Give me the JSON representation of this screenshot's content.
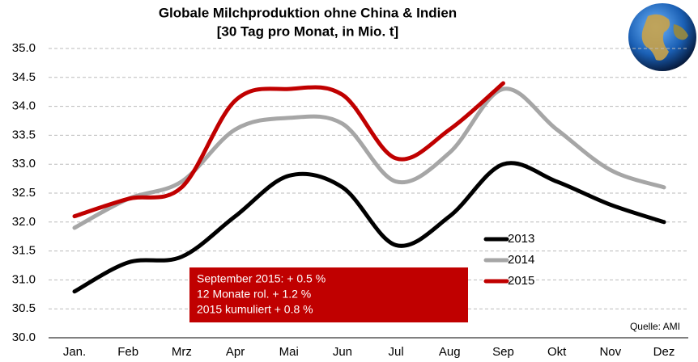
{
  "chart_data": {
    "type": "line",
    "title": "Globale Milchproduktion ohne China & Indien",
    "subtitle": "[30 Tag pro Monat, in Mio. t]",
    "categories": [
      "Jan.",
      "Feb",
      "Mrz",
      "Apr",
      "Mai",
      "Jun",
      "Jul",
      "Aug",
      "Sep",
      "Okt",
      "Nov",
      "Dez"
    ],
    "series": [
      {
        "name": "2013",
        "color": "#000000",
        "values": [
          30.8,
          31.3,
          31.4,
          32.1,
          32.8,
          32.6,
          31.6,
          32.1,
          33.0,
          32.7,
          32.3,
          32.0
        ]
      },
      {
        "name": "2014",
        "color": "#a6a6a6",
        "values": [
          31.9,
          32.4,
          32.7,
          33.6,
          33.8,
          33.7,
          32.7,
          33.2,
          34.3,
          33.6,
          32.9,
          32.6
        ]
      },
      {
        "name": "2015",
        "color": "#c00000",
        "values": [
          32.1,
          32.4,
          32.6,
          34.1,
          34.3,
          34.2,
          33.1,
          33.6,
          34.4,
          null,
          null,
          null
        ]
      }
    ],
    "ylim": [
      30.0,
      35.0
    ],
    "yticks": [
      {
        "value": 30.0,
        "label": "30.0"
      },
      {
        "value": 30.5,
        "label": "30.5"
      },
      {
        "value": 31.0,
        "label": "31.0"
      },
      {
        "value": 31.5,
        "label": "31.5"
      },
      {
        "value": 32.0,
        "label": "32.0"
      },
      {
        "value": 32.5,
        "label": "32.5"
      },
      {
        "value": 33.0,
        "label": "33.0"
      },
      {
        "value": 33.5,
        "label": "33.5"
      },
      {
        "value": 34.0,
        "label": "34.0"
      },
      {
        "value": 34.5,
        "label": "34.5"
      },
      {
        "value": 35.0,
        "label": "35.0"
      }
    ],
    "grid": true,
    "legend_position": "right",
    "annotations": [
      "September 2015: + 0.5 %",
      "12 Monate rol. + 1.2 %",
      "2015 kumuliert + 0.8 %"
    ],
    "annotation_color": "#c00000",
    "source": "Quelle: AMI"
  }
}
